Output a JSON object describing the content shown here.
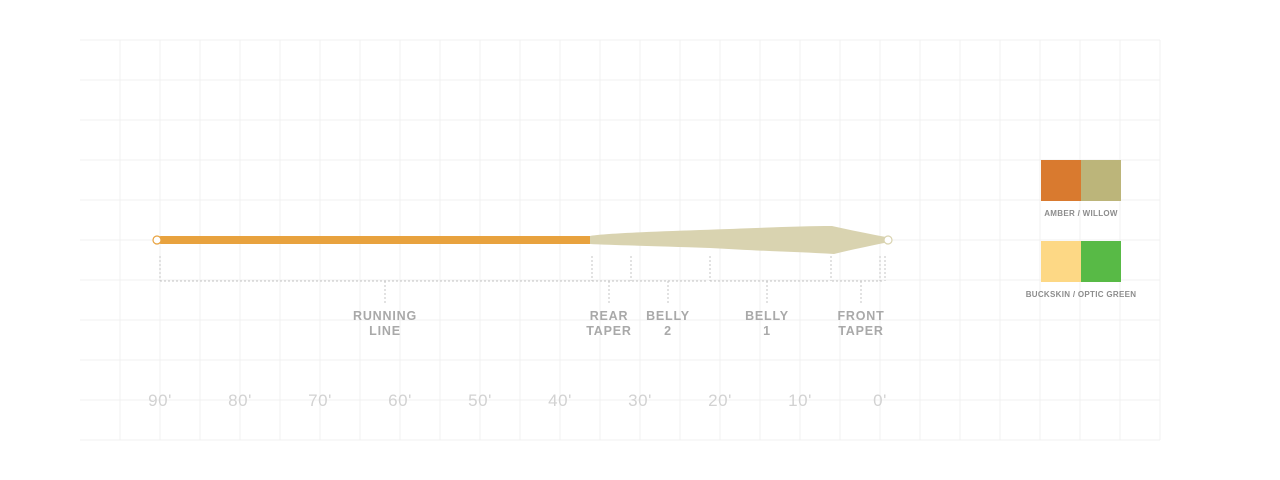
{
  "segments": [
    {
      "line1": "RUNNING",
      "line2": "LINE"
    },
    {
      "line1": "REAR",
      "line2": "TAPER"
    },
    {
      "line1": "BELLY",
      "line2": "2"
    },
    {
      "line1": "BELLY",
      "line2": "1"
    },
    {
      "line1": "FRONT",
      "line2": "TAPER"
    }
  ],
  "scale": {
    "ticks": [
      "90'",
      "80'",
      "70'",
      "60'",
      "50'",
      "40'",
      "30'",
      "20'",
      "10'",
      "0'"
    ]
  },
  "colors": {
    "running_line": "#e8a23e",
    "head": "#d9d3b0",
    "dotted": "#c4c4c4"
  },
  "color_options": [
    {
      "label": "AMBER / WILLOW",
      "colors": [
        "#d97a2f",
        "#bcb57a"
      ]
    },
    {
      "label": "BUCKSKIN / OPTIC GREEN",
      "colors": [
        "#fdd885",
        "#58ba46"
      ]
    }
  ]
}
